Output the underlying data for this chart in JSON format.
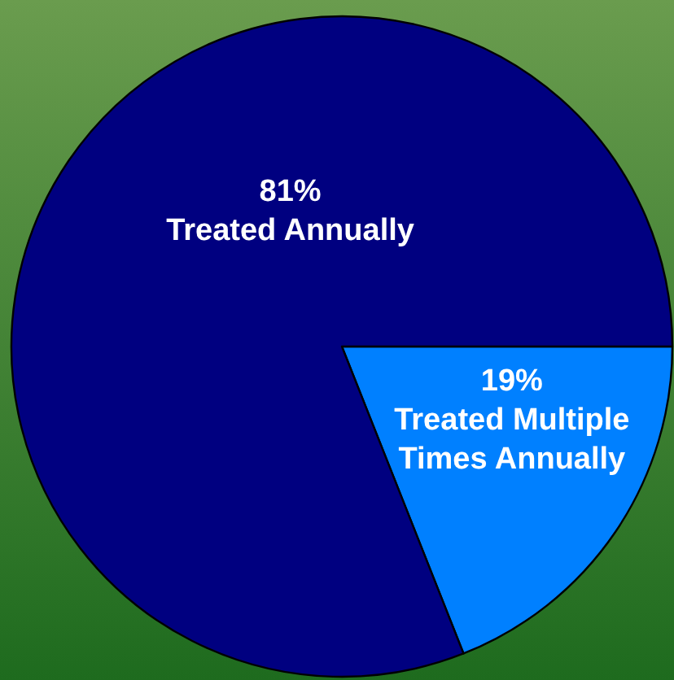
{
  "chart_data": {
    "type": "pie",
    "categories": [
      "Treated Multiple Times Annually",
      "Treated Annually"
    ],
    "values": [
      19,
      81
    ],
    "colors": [
      "#0080ff",
      "#000080"
    ],
    "value_labels": [
      "19%",
      "81%"
    ]
  }
}
